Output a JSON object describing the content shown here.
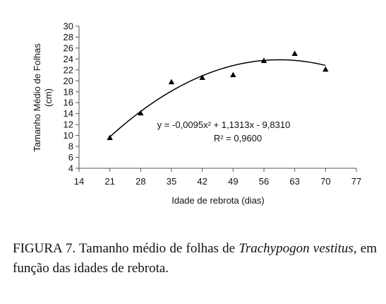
{
  "chart_data": {
    "type": "scatter",
    "xlabel": "Idade de rebrota (dias)",
    "ylabel_line1": "Tamanho Médio de Folhas",
    "ylabel_line2": "(cm)",
    "xlim": [
      14,
      77
    ],
    "ylim": [
      4,
      30
    ],
    "xticks": [
      14,
      21,
      28,
      35,
      42,
      49,
      56,
      63,
      70,
      77
    ],
    "yticks": [
      4,
      6,
      8,
      10,
      12,
      14,
      16,
      18,
      20,
      22,
      24,
      26,
      28,
      30
    ],
    "x": [
      21,
      28,
      35,
      42,
      49,
      56,
      63,
      70
    ],
    "y": [
      9.6,
      14.1,
      19.8,
      20.6,
      21.1,
      23.7,
      25.0,
      22.1
    ],
    "trendline": {
      "type": "polynomial",
      "coefficients": {
        "a": -0.0095,
        "b": 1.1313,
        "c": -9.831
      },
      "equation": "y = -0,0095x² + 1,1313x - 9,8310",
      "r2": "R² = 0,9600"
    },
    "grid": false,
    "legend": "none"
  },
  "caption": {
    "prefix": "FIGURA 7. Tamanho médio de folhas de ",
    "species": "Trachypogon vestitus",
    "suffix": ", em função das idades de rebrota."
  }
}
